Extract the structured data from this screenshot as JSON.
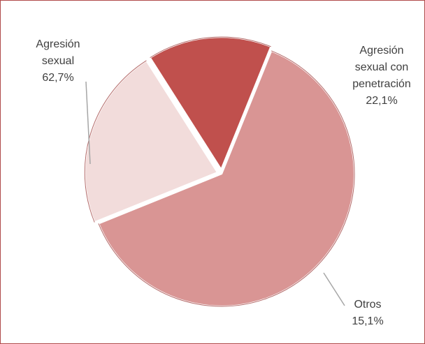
{
  "chart_data": {
    "type": "pie",
    "slices": [
      {
        "label_lines": [
          "Agresión",
          "sexual"
        ],
        "value": 62.7,
        "value_label": "62,7%",
        "color": "#d99594",
        "explode": false
      },
      {
        "label_lines": [
          "Agresión",
          "sexual con",
          "penetración"
        ],
        "value": 22.1,
        "value_label": "22,1%",
        "color": "#f2dcdb",
        "explode": true
      },
      {
        "label_lines": [
          "Otros"
        ],
        "value": 15.1,
        "value_label": "15,1%",
        "color": "#c0504d",
        "explode": true
      }
    ],
    "legend": "none",
    "border_color": "#b04a4a",
    "leader_line_color": "#a6a6a6"
  }
}
